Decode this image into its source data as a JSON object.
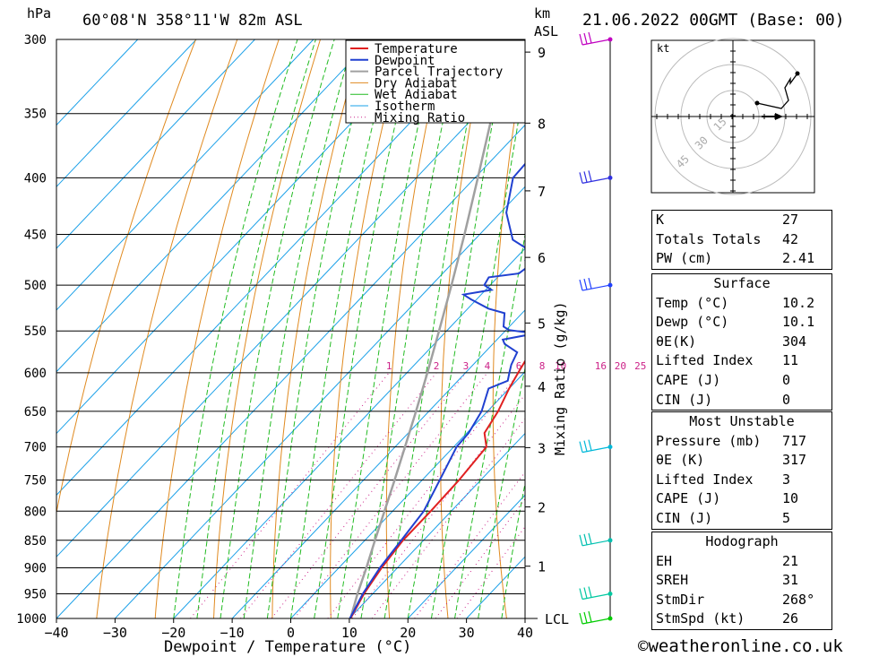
{
  "header": {
    "pressure_unit": "hPa",
    "location": "60°08'N  358°11'W  82m  ASL",
    "km_label": "km",
    "asl_label": "ASL",
    "datetime": "21.06.2022  00GMT  (Base: 00)"
  },
  "chart_data": {
    "type": "line",
    "xlabel": "Dewpoint / Temperature (°C)",
    "ylabel": "hPa",
    "secondary_ylabel": "Mixing Ratio (g/kg)",
    "xlim": [
      -40,
      40
    ],
    "ylim": [
      1000,
      300
    ],
    "x_ticks": [
      -40,
      -30,
      -20,
      -10,
      0,
      10,
      20,
      30,
      40
    ],
    "pressure_ticks": [
      300,
      350,
      400,
      450,
      500,
      550,
      600,
      650,
      700,
      750,
      800,
      850,
      900,
      950,
      1000
    ],
    "km_ticks": [
      {
        "label": "1",
        "p": 897
      },
      {
        "label": "2",
        "p": 793
      },
      {
        "label": "3",
        "p": 701
      },
      {
        "label": "4",
        "p": 617
      },
      {
        "label": "5",
        "p": 541
      },
      {
        "label": "6",
        "p": 472
      },
      {
        "label": "7",
        "p": 411
      },
      {
        "label": "8",
        "p": 357
      },
      {
        "label": "9",
        "p": 308
      }
    ],
    "lcl_label": "LCL",
    "mixing_ratio_labels": [
      "1",
      "2",
      "3",
      "4",
      "6",
      "8",
      "10",
      "16",
      "20",
      "25"
    ],
    "mixing_ratios": [
      1,
      2,
      3,
      4,
      6,
      8,
      10,
      16,
      20,
      25
    ],
    "legend": [
      "Temperature",
      "Dewpoint",
      "Parcel Trajectory",
      "Dry Adiabat",
      "Wet Adiabat",
      "Isotherm",
      "Mixing Ratio"
    ],
    "legend_position": "top-right",
    "series": [
      {
        "name": "Temperature",
        "color": "#e02020",
        "points": [
          [
            1000,
            10.2
          ],
          [
            950,
            8.5
          ],
          [
            900,
            7.3
          ],
          [
            850,
            6.5
          ],
          [
            800,
            6.5
          ],
          [
            750,
            6.3
          ],
          [
            700,
            5.6
          ],
          [
            680,
            3.0
          ],
          [
            650,
            1.8
          ],
          [
            620,
            0.0
          ],
          [
            600,
            -1.0
          ],
          [
            580,
            -2.0
          ],
          [
            550,
            -3.0
          ],
          [
            530,
            -4.5
          ],
          [
            500,
            -6.3
          ],
          [
            470,
            -10.5
          ],
          [
            450,
            -13.0
          ],
          [
            420,
            -17.0
          ],
          [
            400,
            -20.5
          ],
          [
            370,
            -25.5
          ],
          [
            350,
            -28.5
          ],
          [
            320,
            -33.5
          ],
          [
            300,
            -37.0
          ]
        ]
      },
      {
        "name": "Dewpoint",
        "color": "#2040d0",
        "points": [
          [
            1000,
            10.1
          ],
          [
            950,
            8.3
          ],
          [
            900,
            7.0
          ],
          [
            850,
            6.2
          ],
          [
            800,
            5.3
          ],
          [
            750,
            3.0
          ],
          [
            700,
            0.5
          ],
          [
            680,
            0.3
          ],
          [
            650,
            -1.0
          ],
          [
            620,
            -3.5
          ],
          [
            610,
            -1.5
          ],
          [
            600,
            -2.5
          ],
          [
            590,
            -3.5
          ],
          [
            575,
            -4.5
          ],
          [
            565,
            -8.0
          ],
          [
            560,
            -9.0
          ],
          [
            553,
            -4.5
          ],
          [
            549,
            -9.5
          ],
          [
            545,
            -11.0
          ],
          [
            530,
            -13.0
          ],
          [
            525,
            -16.5
          ],
          [
            515,
            -21.0
          ],
          [
            510,
            -23.0
          ],
          [
            505,
            -19.0
          ],
          [
            500,
            -21.0
          ],
          [
            492,
            -21.5
          ],
          [
            488,
            -17.0
          ],
          [
            480,
            -16.5
          ],
          [
            475,
            -18.0
          ],
          [
            465,
            -19.0
          ],
          [
            455,
            -23.5
          ],
          [
            430,
            -29.0
          ],
          [
            400,
            -33.5
          ],
          [
            370,
            -34.0
          ],
          [
            350,
            -34.5
          ],
          [
            340,
            -32.0
          ],
          [
            330,
            -33.0
          ],
          [
            322,
            -29.0
          ],
          [
            310,
            -31.0
          ],
          [
            300,
            -35.0
          ]
        ]
      },
      {
        "name": "Parcel Trajectory",
        "color": "#a0a0a0",
        "points": [
          [
            1000,
            10.2
          ],
          [
            950,
            7.4
          ],
          [
            900,
            4.7
          ],
          [
            850,
            1.7
          ],
          [
            800,
            -1.4
          ],
          [
            750,
            -4.7
          ],
          [
            700,
            -8.3
          ],
          [
            650,
            -12.2
          ],
          [
            600,
            -16.5
          ],
          [
            550,
            -21.3
          ],
          [
            500,
            -26.6
          ],
          [
            450,
            -32.6
          ],
          [
            400,
            -39.5
          ],
          [
            350,
            -47.4
          ],
          [
            300,
            -56.4
          ]
        ]
      }
    ],
    "wind_barbs": [
      {
        "p": 1000,
        "color": "#00cc00"
      },
      {
        "p": 950,
        "color": "#00c8a0"
      },
      {
        "p": 850,
        "color": "#00c0b0"
      },
      {
        "p": 700,
        "color": "#00b8d8"
      },
      {
        "p": 500,
        "color": "#2040ff"
      },
      {
        "p": 400,
        "color": "#3030e0"
      },
      {
        "p": 300,
        "color": "#c000c0"
      }
    ]
  },
  "hodograph": {
    "unit_label": "kt",
    "ring_labels": [
      "15",
      "30",
      "45"
    ]
  },
  "indices": {
    "general": [
      {
        "label": "K",
        "value": "27"
      },
      {
        "label": "Totals Totals",
        "value": "42"
      },
      {
        "label": "PW (cm)",
        "value": "2.41"
      }
    ],
    "surface": {
      "title": "Surface",
      "rows": [
        {
          "label": "Temp (°C)",
          "value": "10.2"
        },
        {
          "label": "Dewp (°C)",
          "value": "10.1"
        },
        {
          "label": "θE(K)",
          "value": "304"
        },
        {
          "label": "Lifted Index",
          "value": "11"
        },
        {
          "label": "CAPE (J)",
          "value": "0"
        },
        {
          "label": "CIN (J)",
          "value": "0"
        }
      ]
    },
    "most_unstable": {
      "title": "Most Unstable",
      "rows": [
        {
          "label": "Pressure (mb)",
          "value": "717"
        },
        {
          "label": "θE (K)",
          "value": "317"
        },
        {
          "label": "Lifted Index",
          "value": "3"
        },
        {
          "label": "CAPE (J)",
          "value": "10"
        },
        {
          "label": "CIN (J)",
          "value": "5"
        }
      ]
    },
    "hodograph_box": {
      "title": "Hodograph",
      "rows": [
        {
          "label": "EH",
          "value": "21"
        },
        {
          "label": "SREH",
          "value": "31"
        },
        {
          "label": "StmDir",
          "value": "268°"
        },
        {
          "label": "StmSpd (kt)",
          "value": "26"
        }
      ]
    }
  },
  "footer": {
    "copyright_symbol": "©",
    "site": "weatheronline.co.uk"
  }
}
